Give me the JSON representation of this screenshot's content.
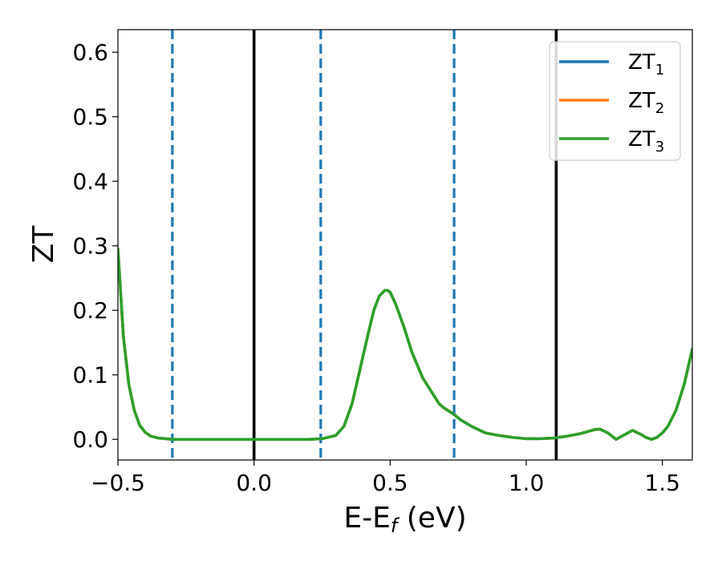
{
  "chart_data": {
    "type": "line",
    "xlabel": {
      "main": "E-E",
      "sub": "f",
      "unit": " (eV)"
    },
    "ylabel": "ZT",
    "xlim": [
      -0.5,
      1.61
    ],
    "ylim": [
      -0.032,
      0.635
    ],
    "xticks": [
      {
        "value": -0.5,
        "label": "−0.5"
      },
      {
        "value": 0.0,
        "label": "0.0"
      },
      {
        "value": 0.5,
        "label": "0.5"
      },
      {
        "value": 1.0,
        "label": "1.0"
      },
      {
        "value": 1.5,
        "label": "1.5"
      }
    ],
    "yticks": [
      {
        "value": 0.0,
        "label": "0.0"
      },
      {
        "value": 0.1,
        "label": "0.1"
      },
      {
        "value": 0.2,
        "label": "0.2"
      },
      {
        "value": 0.3,
        "label": "0.3"
      },
      {
        "value": 0.4,
        "label": "0.4"
      },
      {
        "value": 0.5,
        "label": "0.5"
      },
      {
        "value": 0.6,
        "label": "0.6"
      }
    ],
    "grid": false,
    "legend_position": "top-right",
    "vlines": [
      {
        "x": 0.0,
        "style": "solid",
        "color": "#000000"
      },
      {
        "x": 1.11,
        "style": "solid",
        "color": "#000000"
      },
      {
        "x": -0.3,
        "style": "dashed",
        "color": "#1f77b4"
      },
      {
        "x": 0.245,
        "style": "dashed",
        "color": "#1f77b4"
      },
      {
        "x": 0.735,
        "style": "dashed",
        "color": "#1f77b4"
      }
    ],
    "series": [
      {
        "name": "ZT",
        "sub": "1",
        "color": "#1f77b4",
        "x": [
          -0.5,
          -0.48,
          -0.46,
          -0.44,
          -0.42,
          -0.4,
          -0.38,
          -0.35,
          -0.3,
          -0.2,
          -0.1,
          0.0,
          0.1,
          0.2,
          0.25,
          0.3,
          0.33,
          0.36,
          0.39,
          0.42,
          0.44,
          0.46,
          0.48,
          0.49,
          0.5,
          0.52,
          0.55,
          0.58,
          0.62,
          0.65,
          0.68,
          0.7,
          0.73,
          0.76,
          0.8,
          0.85,
          0.9,
          0.95,
          1.0,
          1.05,
          1.1,
          1.15,
          1.2,
          1.25,
          1.27,
          1.3,
          1.33,
          1.36,
          1.39,
          1.42,
          1.44,
          1.46,
          1.48,
          1.5,
          1.52,
          1.55,
          1.58,
          1.61
        ],
        "y": [
          0.295,
          0.16,
          0.085,
          0.045,
          0.022,
          0.011,
          0.005,
          0.002,
          0.0,
          0.0,
          0.0,
          0.0,
          0.0,
          0.0,
          0.001,
          0.006,
          0.02,
          0.055,
          0.11,
          0.165,
          0.2,
          0.222,
          0.231,
          0.231,
          0.228,
          0.21,
          0.175,
          0.135,
          0.095,
          0.075,
          0.055,
          0.048,
          0.04,
          0.03,
          0.02,
          0.01,
          0.006,
          0.003,
          0.001,
          0.001,
          0.002,
          0.005,
          0.009,
          0.015,
          0.016,
          0.01,
          0.0,
          0.007,
          0.014,
          0.008,
          0.003,
          0.0,
          0.003,
          0.01,
          0.02,
          0.045,
          0.085,
          0.14
        ]
      },
      {
        "name": "ZT",
        "sub": "2",
        "color": "#ff7f0e",
        "x": [
          -0.5,
          -0.48,
          -0.46,
          -0.44,
          -0.42,
          -0.4,
          -0.38,
          -0.35,
          -0.3,
          -0.2,
          -0.1,
          0.0,
          0.1,
          0.2,
          0.25,
          0.3,
          0.33,
          0.36,
          0.39,
          0.42,
          0.44,
          0.46,
          0.48,
          0.49,
          0.5,
          0.52,
          0.55,
          0.58,
          0.62,
          0.65,
          0.68,
          0.7,
          0.73,
          0.76,
          0.8,
          0.85,
          0.9,
          0.95,
          1.0,
          1.05,
          1.1,
          1.15,
          1.2,
          1.25,
          1.27,
          1.3,
          1.33,
          1.36,
          1.39,
          1.42,
          1.44,
          1.46,
          1.48,
          1.5,
          1.52,
          1.55,
          1.58,
          1.61
        ],
        "y": [
          0.295,
          0.16,
          0.085,
          0.045,
          0.022,
          0.011,
          0.005,
          0.002,
          0.0,
          0.0,
          0.0,
          0.0,
          0.0,
          0.0,
          0.001,
          0.006,
          0.02,
          0.055,
          0.11,
          0.165,
          0.2,
          0.222,
          0.231,
          0.231,
          0.228,
          0.21,
          0.175,
          0.135,
          0.095,
          0.075,
          0.055,
          0.048,
          0.04,
          0.03,
          0.02,
          0.01,
          0.006,
          0.003,
          0.001,
          0.001,
          0.002,
          0.005,
          0.009,
          0.015,
          0.016,
          0.01,
          0.0,
          0.007,
          0.014,
          0.008,
          0.003,
          0.0,
          0.003,
          0.01,
          0.02,
          0.045,
          0.085,
          0.14
        ]
      },
      {
        "name": "ZT",
        "sub": "3",
        "color": "#2ca02c",
        "x": [
          -0.5,
          -0.48,
          -0.46,
          -0.44,
          -0.42,
          -0.4,
          -0.38,
          -0.35,
          -0.3,
          -0.2,
          -0.1,
          0.0,
          0.1,
          0.2,
          0.25,
          0.3,
          0.33,
          0.36,
          0.39,
          0.42,
          0.44,
          0.46,
          0.48,
          0.49,
          0.5,
          0.52,
          0.55,
          0.58,
          0.62,
          0.65,
          0.68,
          0.7,
          0.73,
          0.76,
          0.8,
          0.85,
          0.9,
          0.95,
          1.0,
          1.05,
          1.1,
          1.15,
          1.2,
          1.25,
          1.27,
          1.3,
          1.33,
          1.36,
          1.39,
          1.42,
          1.44,
          1.46,
          1.48,
          1.5,
          1.52,
          1.55,
          1.58,
          1.61
        ],
        "y": [
          0.295,
          0.16,
          0.085,
          0.045,
          0.022,
          0.011,
          0.005,
          0.002,
          0.0,
          0.0,
          0.0,
          0.0,
          0.0,
          0.0,
          0.001,
          0.006,
          0.02,
          0.055,
          0.11,
          0.165,
          0.2,
          0.222,
          0.231,
          0.231,
          0.228,
          0.21,
          0.175,
          0.135,
          0.095,
          0.075,
          0.055,
          0.048,
          0.04,
          0.03,
          0.02,
          0.01,
          0.006,
          0.003,
          0.001,
          0.001,
          0.002,
          0.005,
          0.009,
          0.015,
          0.016,
          0.01,
          0.0,
          0.007,
          0.014,
          0.008,
          0.003,
          0.0,
          0.003,
          0.01,
          0.02,
          0.045,
          0.085,
          0.14
        ]
      }
    ]
  }
}
